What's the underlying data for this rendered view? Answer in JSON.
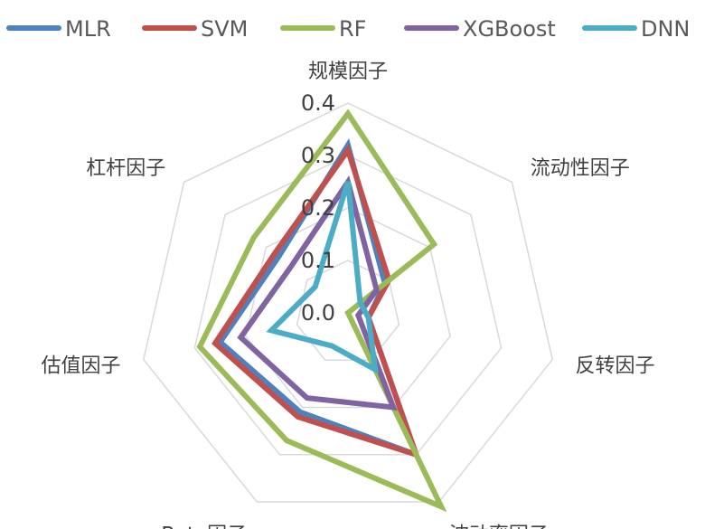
{
  "chart_data": {
    "type": "radar",
    "categories": [
      "规模因子",
      "流动性因子",
      "反转因子",
      "波动率因子",
      "Beta因子",
      "估值因子",
      "杠杆因子"
    ],
    "rlim": [
      0.0,
      0.4
    ],
    "ticks": [
      "0.0",
      "0.1",
      "0.2",
      "0.3",
      "0.4"
    ],
    "tick_values": [
      0.0,
      0.1,
      0.2,
      0.3,
      0.4
    ],
    "grid": true,
    "legend_position": "top",
    "series": [
      {
        "name": "MLR",
        "color": "#4F81BD",
        "values": [
          0.32,
          0.09,
          0.04,
          0.3,
          0.21,
          0.25,
          0.17
        ]
      },
      {
        "name": "SVM",
        "color": "#C0504D",
        "values": [
          0.31,
          0.1,
          0.04,
          0.3,
          0.22,
          0.26,
          0.18
        ]
      },
      {
        "name": "RF",
        "color": "#9BBB59",
        "values": [
          0.38,
          0.21,
          0.0,
          0.41,
          0.27,
          0.29,
          0.23
        ]
      },
      {
        "name": "XGBoost",
        "color": "#8064A2",
        "values": [
          0.25,
          0.07,
          0.02,
          0.2,
          0.18,
          0.21,
          0.14
        ]
      },
      {
        "name": "DNN",
        "color": "#4BACC6",
        "values": [
          0.25,
          0.03,
          0.04,
          0.12,
          0.07,
          0.15,
          0.08
        ]
      }
    ]
  }
}
